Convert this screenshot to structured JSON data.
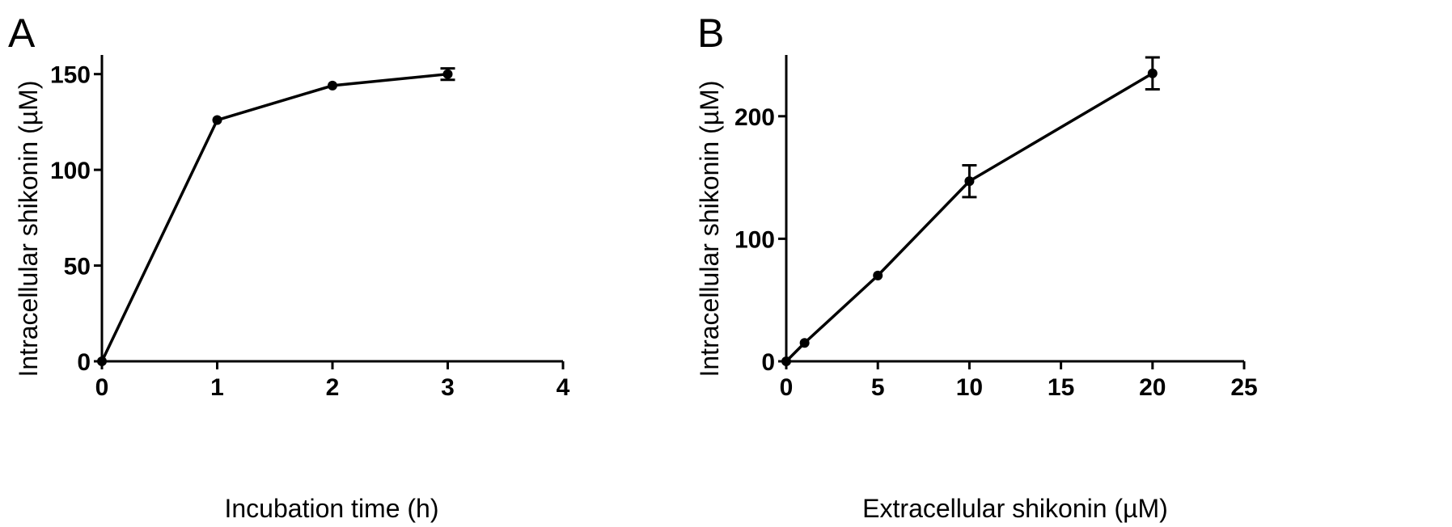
{
  "chart_data": [
    {
      "panel": "A",
      "type": "line",
      "xlabel": "Incubation time (h)",
      "ylabel": "Intracellular shikonin (µM)",
      "xlim": [
        0,
        4
      ],
      "ylim": [
        0,
        160
      ],
      "xticks": [
        0,
        1,
        2,
        3,
        4
      ],
      "yticks": [
        0,
        50,
        100,
        150
      ],
      "series": [
        {
          "x": [
            0,
            1,
            2,
            3
          ],
          "y": [
            0,
            126,
            144,
            150
          ],
          "err": [
            0,
            0,
            0,
            3
          ]
        }
      ],
      "grid": false,
      "color": "#000000"
    },
    {
      "panel": "B",
      "type": "line",
      "xlabel": "Extracellular shikonin (µM)",
      "ylabel": "Intracellular shikonin (µM)",
      "xlim": [
        0,
        25
      ],
      "ylim": [
        0,
        250
      ],
      "xticks": [
        0,
        5,
        10,
        15,
        20,
        25
      ],
      "yticks": [
        0,
        100,
        200
      ],
      "series": [
        {
          "x": [
            0,
            1,
            5,
            10,
            20
          ],
          "y": [
            0,
            15,
            70,
            147,
            235
          ],
          "err": [
            0,
            0,
            0,
            13,
            13
          ]
        }
      ],
      "grid": false,
      "color": "#000000"
    }
  ]
}
